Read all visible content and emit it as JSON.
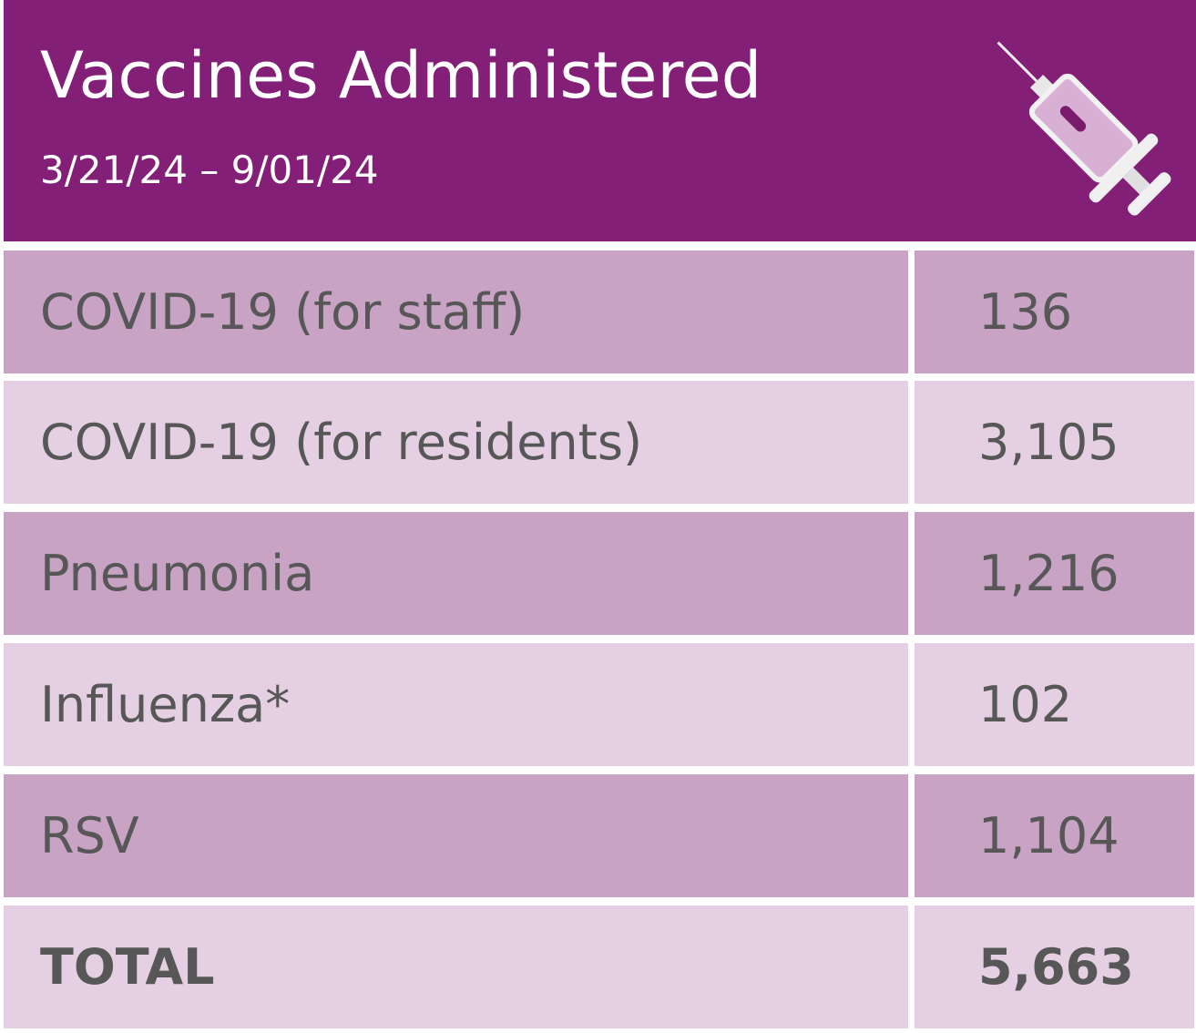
{
  "header": {
    "title": "Vaccines Administered",
    "subtitle": "3/21/24 – 9/01/24"
  },
  "table": {
    "rows": [
      [
        "COVID-19 (for staff)",
        "136"
      ],
      [
        "COVID-19 (for residents)",
        "3,105"
      ],
      [
        "Pneumonia",
        "1,216"
      ],
      [
        "Influenza*",
        "102"
      ],
      [
        "RSV",
        "1,104"
      ]
    ],
    "total": [
      "TOTAL",
      "5,663"
    ]
  }
}
